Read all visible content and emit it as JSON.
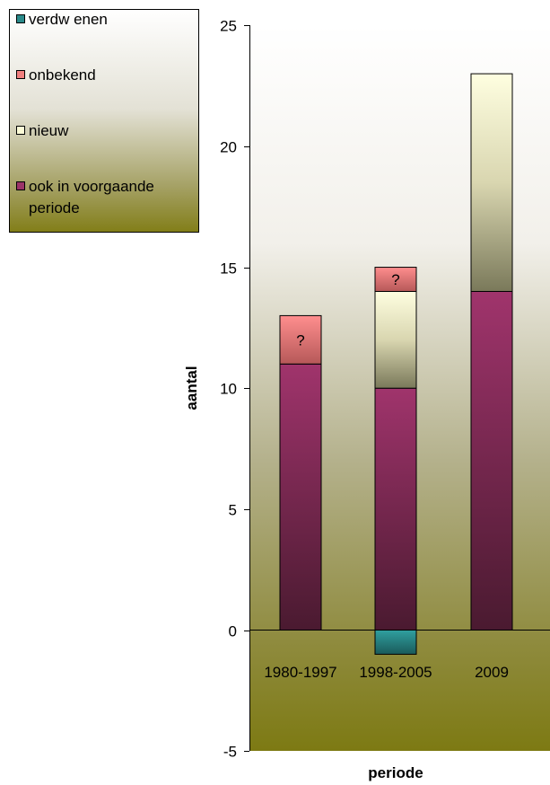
{
  "chart_data": {
    "type": "bar",
    "stacked": true,
    "categories": [
      "1980-1997",
      "1998-2005",
      "2009"
    ],
    "series": [
      {
        "name": "verdw enen",
        "values": [
          0,
          -1,
          0
        ],
        "color": "#2a8a8a"
      },
      {
        "name": "ook in voorgaande periode",
        "values": [
          11,
          10,
          14
        ],
        "color": "#9b3468"
      },
      {
        "name": "nieuw",
        "values": [
          0,
          4,
          9
        ],
        "color": "#fbfbd6"
      },
      {
        "name": "onbekend",
        "values": [
          2,
          1,
          0
        ],
        "color": "#f07f7f",
        "segment_label": "?"
      }
    ],
    "legend_order": [
      "verdw enen",
      "onbekend",
      "nieuw",
      "ook in voorgaande periode"
    ],
    "legend_position": "top-left",
    "xlabel": "periode",
    "ylabel": "aantal",
    "ylim": [
      -5,
      25
    ],
    "yticks": [
      -5,
      0,
      5,
      10,
      15,
      20,
      25
    ],
    "grid": false,
    "colors": {
      "plot_top": "#ffffff",
      "plot_bottom": "#7d7a13"
    }
  }
}
